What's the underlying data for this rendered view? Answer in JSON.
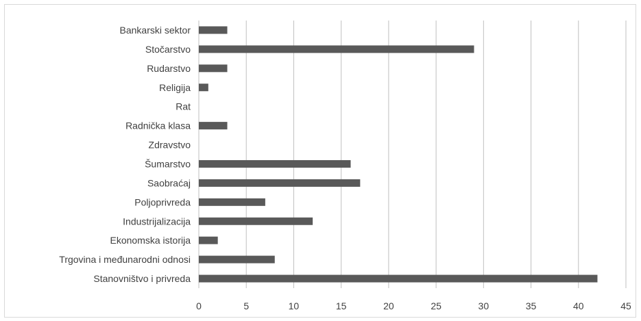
{
  "chart_data": {
    "type": "bar",
    "orientation": "horizontal",
    "categories": [
      "Bankarski sektor",
      "Stočarstvo",
      "Rudarstvo",
      "Religija",
      "Rat",
      "Radnička klasa",
      "Zdravstvo",
      "Šumarstvo",
      "Saobraćaj",
      "Poljoprivreda",
      "Industrijalizacija",
      "Ekonomska istorija",
      "Trgovina i međunarodni odnosi",
      "Stanovništvo i privreda"
    ],
    "values": [
      3,
      29,
      3,
      1,
      0,
      3,
      0,
      16,
      17,
      7,
      12,
      2,
      8,
      42
    ],
    "xlim": [
      0,
      45
    ],
    "x_ticks": [
      0,
      5,
      10,
      15,
      20,
      25,
      30,
      35,
      40,
      45
    ],
    "grid": "vertical",
    "legend": "none",
    "bar_color": "#595959",
    "grid_color": "#bfbfbf"
  }
}
